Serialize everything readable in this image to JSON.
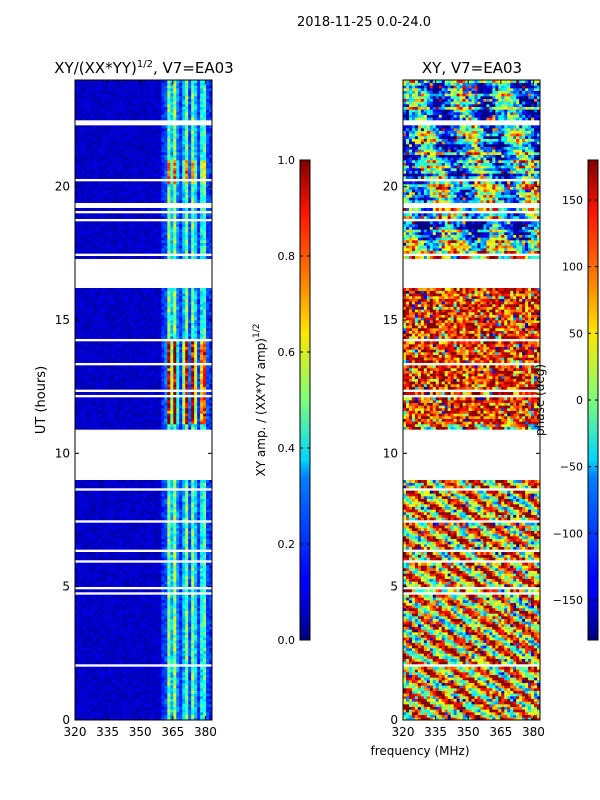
{
  "suptitle": "2018-11-25 0.0-24.0",
  "shared_xlabel": "frequency (MHz)",
  "chart_data": [
    {
      "type": "heatmap",
      "title_main": "XY/(XX*YY)",
      "title_exp": "1/2",
      "title_tail": ", V7=EA03",
      "ylabel": "UT (hours)",
      "x_ticks": [
        "320",
        "335",
        "350",
        "365",
        "380"
      ],
      "x_tick_values": [
        320,
        335,
        350,
        365,
        380
      ],
      "xlim": [
        320,
        383
      ],
      "y_ticks": [
        "0",
        "5",
        "10",
        "15",
        "20"
      ],
      "y_tick_values": [
        0,
        5,
        10,
        15,
        20
      ],
      "ylim": [
        0,
        24
      ],
      "active_band_mhz": [
        360,
        381
      ],
      "data_gaps_hours": [
        [
          9.0,
          10.9
        ],
        [
          16.2,
          17.3
        ]
      ],
      "colormap": "jet",
      "value_range": [
        0.0,
        1.0
      ],
      "colorbar": {
        "label_main": "XY amp. / (XX*YY amp)",
        "label_exp": "1/2",
        "ticks": [
          "0.0",
          "0.2",
          "0.4",
          "0.6",
          "0.8",
          "1.0"
        ],
        "tick_values": [
          0.0,
          0.2,
          0.4,
          0.6,
          0.8,
          1.0
        ],
        "range": [
          0.0,
          1.0
        ]
      }
    },
    {
      "type": "heatmap",
      "title": "XY, V7=EA03",
      "x_ticks": [
        "320",
        "335",
        "350",
        "365",
        "380"
      ],
      "x_tick_values": [
        320,
        335,
        350,
        365,
        380
      ],
      "xlim": [
        320,
        383
      ],
      "y_ticks": [
        "0",
        "5",
        "10",
        "15",
        "20"
      ],
      "y_tick_values": [
        0,
        5,
        10,
        15,
        20
      ],
      "ylim": [
        0,
        24
      ],
      "data_gaps_hours": [
        [
          9.0,
          10.9
        ],
        [
          16.2,
          17.3
        ]
      ],
      "colormap": "jet",
      "value_range": [
        -180,
        180
      ],
      "colorbar": {
        "label": "phase (deg)",
        "ticks": [
          "-150",
          "-100",
          "-50",
          "0",
          "50",
          "100",
          "150"
        ],
        "tick_values": [
          -150,
          -100,
          -50,
          0,
          50,
          100,
          150
        ],
        "range": [
          -180,
          180
        ]
      }
    }
  ]
}
